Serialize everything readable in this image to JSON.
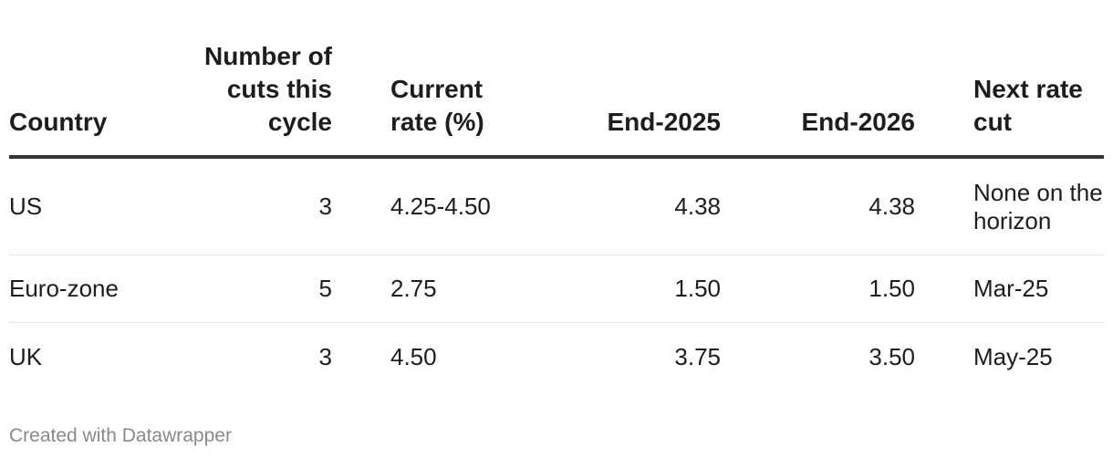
{
  "table": {
    "headers": {
      "country": "Country",
      "cuts": "Number of cuts this cycle",
      "current_rate": "Current rate (%)",
      "end_2025": "End-2025",
      "end_2026": "End-2026",
      "next_cut": "Next rate cut"
    },
    "rows": [
      {
        "country": "US",
        "cuts": "3",
        "current_rate": "4.25-4.50",
        "end_2025": "4.38",
        "end_2026": "4.38",
        "next_cut": "None on the horizon"
      },
      {
        "country": "Euro-zone",
        "cuts": "5",
        "current_rate": "2.75",
        "end_2025": "1.50",
        "end_2026": "1.50",
        "next_cut": "Mar-25"
      },
      {
        "country": "UK",
        "cuts": "3",
        "current_rate": "4.50",
        "end_2025": "3.75",
        "end_2026": "3.50",
        "next_cut": "May-25"
      }
    ]
  },
  "footer": {
    "credit": "Created with Datawrapper"
  }
}
